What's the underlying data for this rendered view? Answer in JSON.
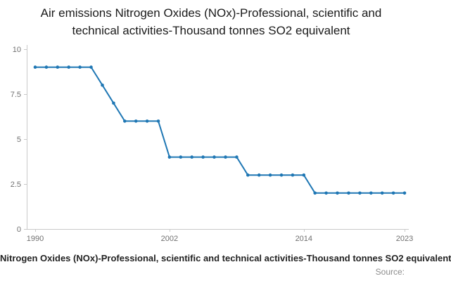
{
  "page": {
    "title": "Air emissions Nitrogen Oxides (NOx)-Professional, scientific and technical activities-Thousand tonnes SO2 equivalent",
    "legend": "Nitrogen Oxides (NOx)-Professional, scientific and technical activities-Thousand tonnes SO2 equivalent",
    "source_label": "Source:"
  },
  "chart_data": {
    "type": "line",
    "title": "Air emissions Nitrogen Oxides (NOx)-Professional, scientific and technical activities-Thousand tonnes SO2 equivalent",
    "x": [
      1990,
      1991,
      1992,
      1993,
      1994,
      1995,
      1996,
      1997,
      1998,
      1999,
      2000,
      2001,
      2002,
      2003,
      2004,
      2005,
      2006,
      2007,
      2008,
      2009,
      2010,
      2011,
      2012,
      2013,
      2014,
      2015,
      2016,
      2017,
      2018,
      2019,
      2020,
      2021,
      2022,
      2023
    ],
    "series": [
      {
        "name": "Nitrogen Oxides (NOx)-Professional, scientific and technical activities-Thousand tonnes SO2 equivalent",
        "values": [
          9,
          9,
          9,
          9,
          9,
          9,
          8,
          7,
          6,
          6,
          6,
          6,
          4,
          4,
          4,
          4,
          4,
          4,
          4,
          3,
          3,
          3,
          3,
          3,
          3,
          2,
          2,
          2,
          2,
          2,
          2,
          2,
          2,
          2
        ]
      }
    ],
    "xlabel": "",
    "ylabel": "",
    "xlim": [
      1990,
      2023
    ],
    "ylim": [
      0,
      10
    ],
    "xticks": [
      1990,
      2002,
      2014,
      2023
    ],
    "yticks": [
      0,
      2.5,
      5,
      7.5,
      10
    ],
    "grid": false,
    "marker": "circle",
    "legend_position": "bottom",
    "line_color": "#1f77b4",
    "axis_color": "#c9c9c9",
    "tick_label_color": "#707070"
  }
}
